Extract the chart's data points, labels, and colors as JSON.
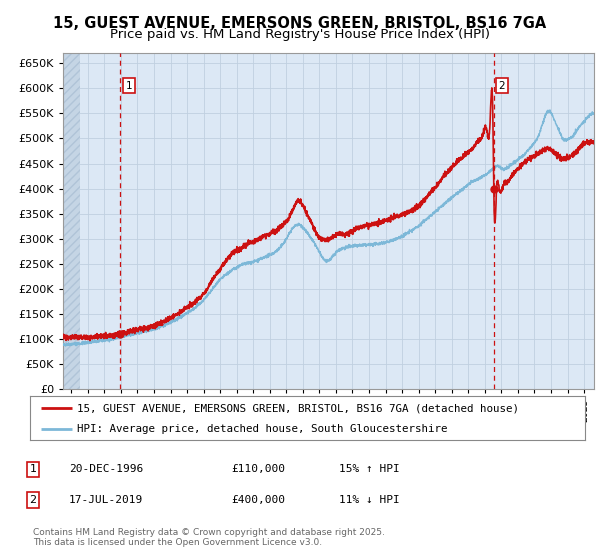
{
  "title_line1": "15, GUEST AVENUE, EMERSONS GREEN, BRISTOL, BS16 7GA",
  "title_line2": "Price paid vs. HM Land Registry's House Price Index (HPI)",
  "title_fontsize": 10.5,
  "subtitle_fontsize": 9.5,
  "ylim": [
    0,
    670000
  ],
  "ytick_step": 50000,
  "hpi_color": "#7db8d8",
  "price_color": "#cc1111",
  "grid_color": "#c0d0e0",
  "bg_color": "#dce8f5",
  "hatch_color": "#c5d5e5",
  "marker1_x": 1996.97,
  "marker1_price": 110000,
  "marker1_label": "20-DEC-1996",
  "marker1_value_label": "£110,000",
  "marker1_hpi_label": "15% ↑ HPI",
  "marker2_x": 2019.54,
  "marker2_price": 400000,
  "marker2_label": "17-JUL-2019",
  "marker2_value_label": "£400,000",
  "marker2_hpi_label": "11% ↓ HPI",
  "legend_line1": "15, GUEST AVENUE, EMERSONS GREEN, BRISTOL, BS16 7GA (detached house)",
  "legend_line2": "HPI: Average price, detached house, South Gloucestershire",
  "footer": "Contains HM Land Registry data © Crown copyright and database right 2025.\nThis data is licensed under the Open Government Licence v3.0.",
  "xstart": 1993.5,
  "xend": 2025.6,
  "hatch_xend": 1994.5
}
